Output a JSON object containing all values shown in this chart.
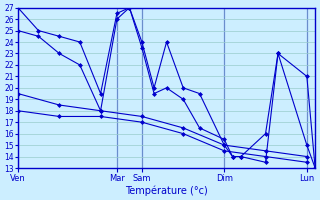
{
  "xlabel": "Température (°c)",
  "background_color": "#cceeff",
  "grid_color": "#99cccc",
  "line_color": "#0000cc",
  "spine_color": "#0000cc",
  "ylim": [
    13,
    27
  ],
  "yticks": [
    13,
    14,
    15,
    16,
    17,
    18,
    19,
    20,
    21,
    22,
    23,
    24,
    25,
    26,
    27
  ],
  "x_ticks_labels": [
    "Ven",
    "Mar",
    "Sam",
    "Dim",
    "Lun"
  ],
  "x_ticks_pos": [
    0,
    0.333,
    0.417,
    0.694,
    0.972
  ],
  "x_max": 1.0,
  "vline_positions": [
    0,
    0.333,
    0.417,
    0.694,
    0.972
  ],
  "series": [
    {
      "x": [
        0.0,
        0.069,
        0.139,
        0.208,
        0.278,
        0.333,
        0.375,
        0.417,
        0.458,
        0.5,
        0.556,
        0.611,
        0.694,
        0.722,
        0.75,
        0.833,
        0.875,
        0.972,
        1.0
      ],
      "y": [
        27,
        25,
        24.5,
        24,
        19.5,
        26.5,
        27,
        24,
        20,
        24,
        20,
        19.5,
        15,
        14,
        14,
        16,
        23,
        21,
        13
      ]
    },
    {
      "x": [
        0.0,
        0.069,
        0.139,
        0.208,
        0.278,
        0.333,
        0.375,
        0.417,
        0.458,
        0.5,
        0.556,
        0.611,
        0.694,
        0.722,
        0.75,
        0.833,
        0.875,
        0.972,
        1.0
      ],
      "y": [
        25,
        24.5,
        23,
        22,
        18,
        26,
        27,
        23.5,
        19.5,
        20,
        19,
        16.5,
        15.5,
        14,
        14,
        13.5,
        23,
        15,
        13
      ]
    },
    {
      "x": [
        0.0,
        0.139,
        0.278,
        0.417,
        0.556,
        0.694,
        0.833,
        0.972
      ],
      "y": [
        19.5,
        18.5,
        18,
        17.5,
        16.5,
        15,
        14.5,
        14
      ]
    },
    {
      "x": [
        0.0,
        0.139,
        0.278,
        0.417,
        0.556,
        0.694,
        0.833,
        0.972
      ],
      "y": [
        18,
        17.5,
        17.5,
        17,
        16,
        14.5,
        14,
        13.5
      ]
    }
  ]
}
